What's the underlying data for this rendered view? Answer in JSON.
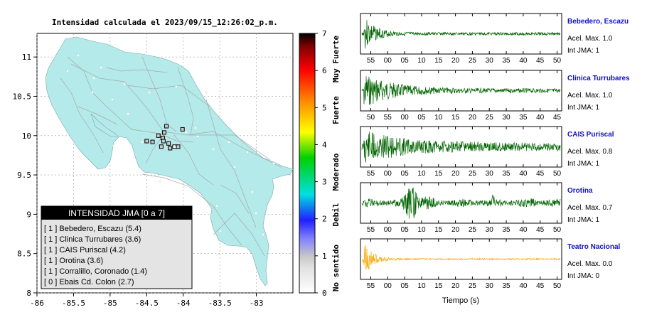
{
  "chart_data": [
    {
      "type": "map",
      "title": "Intensidad calculada el 2023/09/15_12:26:02_p.m.",
      "xlim": [
        -86,
        -82.5
      ],
      "ylim": [
        8,
        11.3
      ],
      "x_ticks": [
        -86,
        -85.5,
        -85,
        -84.5,
        -84,
        -83.5,
        -83
      ],
      "x_tick_labels": [
        "-86",
        "-85.5",
        "-85",
        "-84.5",
        "-84",
        "-83.5",
        "-83"
      ],
      "y_ticks": [
        8,
        8.5,
        9,
        9.5,
        10,
        10.5,
        11
      ],
      "y_tick_labels": [
        "8",
        "8.5",
        "9",
        "9.5",
        "10",
        "10.5",
        "11"
      ],
      "grid": true,
      "land_color": "#b4eaea",
      "stations": [
        {
          "lon": -84.5,
          "lat": 9.93,
          "intensity": 1
        },
        {
          "lon": -84.42,
          "lat": 9.92,
          "intensity": 1
        },
        {
          "lon": -84.34,
          "lat": 10.0,
          "intensity": 1
        },
        {
          "lon": -84.28,
          "lat": 9.97,
          "intensity": 1
        },
        {
          "lon": -84.27,
          "lat": 9.93,
          "intensity": 1
        },
        {
          "lon": -84.26,
          "lat": 10.04,
          "intensity": 1
        },
        {
          "lon": -84.23,
          "lat": 10.12,
          "intensity": 1
        },
        {
          "lon": -84.2,
          "lat": 9.9,
          "intensity": 1
        },
        {
          "lon": -84.3,
          "lat": 9.86,
          "intensity": 1
        },
        {
          "lon": -84.12,
          "lat": 9.86,
          "intensity": 0
        },
        {
          "lon": -84.07,
          "lat": 9.86,
          "intensity": 1
        },
        {
          "lon": -84.01,
          "lat": 10.08,
          "intensity": 1
        },
        {
          "lon": -84.18,
          "lat": 9.84,
          "intensity": 1
        }
      ],
      "legend": {
        "title": "INTENSIDAD JMA [0 a 7]",
        "entries": [
          "[ 1 ]  Bebedero, Escazu (5.4)",
          "[ 1 ]  Clinica Turrubares (3.6)",
          "[ 1 ]  CAIS Puriscal (4.2)",
          "[ 1 ]  Orotina (3.6)",
          "[ 1 ]  Corralillo, Coronado (1.4)",
          "[ 0 ]  Ebais Cd. Colon (2.7)"
        ]
      }
    },
    {
      "type": "colorbar",
      "range": [
        0,
        7
      ],
      "ticks": [
        "0",
        "1",
        "2",
        "3",
        "4",
        "5",
        "6",
        "7"
      ],
      "labels": [
        "No sentido",
        "Debil",
        "Moderado",
        "Fuerte",
        "Muy Fuerte"
      ],
      "colors": [
        "#ffffff",
        "#c8c8c8",
        "#3030ff",
        "#00e0e0",
        "#00cc00",
        "#ffff00",
        "#ff8800",
        "#ff0000",
        "#800000",
        "#000000"
      ]
    },
    {
      "type": "line",
      "description_axis": "Tiempo (s)",
      "series": [
        {
          "name": "Bebedero, Escazu",
          "accel_label": "Acel. Max. 1.0",
          "jma_label": "Int JMA: 1",
          "color": "#006400",
          "ticks": [
            "55",
            "00",
            "05",
            "10",
            "15",
            "20",
            "25",
            "30",
            "35",
            "40",
            "45",
            "50"
          ],
          "seed": 3,
          "profile": "early"
        },
        {
          "name": "Clinica Turrubares",
          "accel_label": "Acel. Max. 1.0",
          "jma_label": "Int JMA: 1",
          "color": "#006400",
          "ticks": [
            "50",
            "55",
            "00",
            "05",
            "10",
            "15",
            "20",
            "25",
            "30",
            "35",
            "40",
            "45"
          ],
          "seed": 7,
          "profile": "early_long"
        },
        {
          "name": "CAIS Puriscal",
          "accel_label": "Acel. Max. 0.8",
          "jma_label": "Int JMA: 1",
          "color": "#006400",
          "ticks": [
            "55",
            "00",
            "05",
            "10",
            "15",
            "20",
            "25",
            "30",
            "35",
            "40",
            "45",
            "50"
          ],
          "seed": 11,
          "profile": "early_wide"
        },
        {
          "name": "Orotina",
          "accel_label": "Acel. Max. 0.7",
          "jma_label": "Int JMA: 1",
          "color": "#006400",
          "ticks": [
            "55",
            "00",
            "05",
            "10",
            "15",
            "20",
            "25",
            "30",
            "35",
            "40",
            "45",
            "50"
          ],
          "seed": 19,
          "profile": "mid"
        },
        {
          "name": "Teatro Nacional",
          "accel_label": "Acel. Max. 0.0",
          "jma_label": "Int JMA: 0",
          "color": "#f5a800",
          "ticks": [
            "55",
            "00",
            "05",
            "10",
            "15",
            "20",
            "25",
            "30",
            "35",
            "40",
            "45",
            "50"
          ],
          "seed": 23,
          "profile": "tiny"
        }
      ]
    }
  ]
}
